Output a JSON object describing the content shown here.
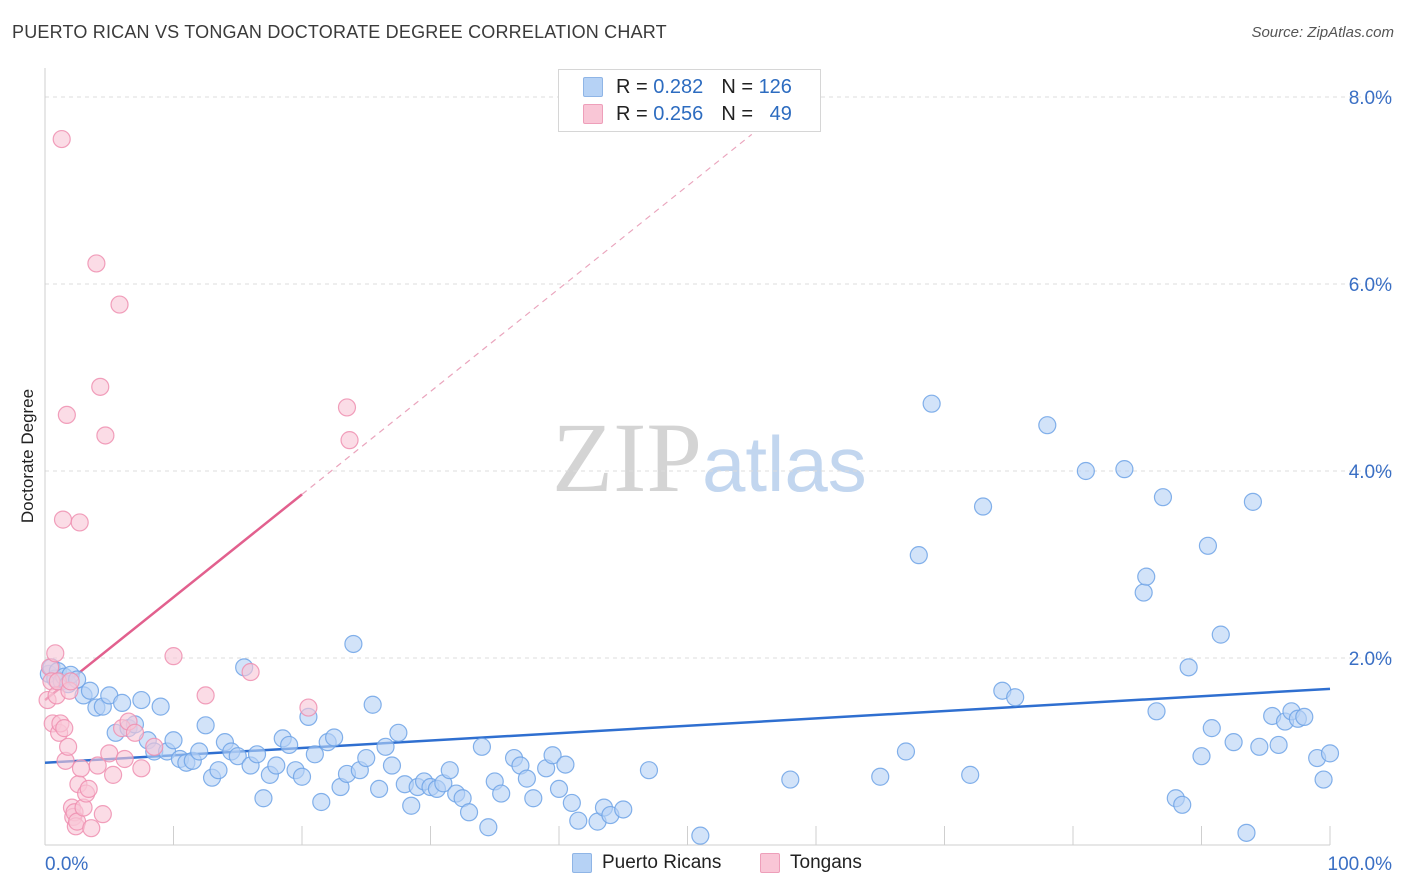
{
  "title": "PUERTO RICAN VS TONGAN DOCTORATE DEGREE CORRELATION CHART",
  "source": "Source: ZipAtlas.com",
  "watermark": {
    "zip": "ZIP",
    "atlas": "atlas"
  },
  "legend": {
    "rows": [
      {
        "r_label": "R =",
        "r_value": "0.282",
        "n_label": "N =",
        "n_value": "126",
        "color": "#b6d2f5"
      },
      {
        "r_label": "R =",
        "r_value": "0.256",
        "n_label": "N =",
        "n_value": "49",
        "color": "#f9c6d6"
      }
    ]
  },
  "bottom_legend": {
    "puerto_ricans": {
      "label": "Puerto Ricans",
      "color": "#b6d2f5"
    },
    "tongans": {
      "label": "Tongans",
      "color": "#f9c6d6"
    }
  },
  "chart_data": {
    "type": "scatter",
    "title": "PUERTO RICAN VS TONGAN DOCTORATE DEGREE CORRELATION CHART",
    "xlabel": "",
    "ylabel": "Doctorate Degree",
    "xlim": [
      0,
      100
    ],
    "ylim": [
      0,
      8.0
    ],
    "x_tick_labels": [
      "0.0%",
      "100.0%"
    ],
    "y_ticks": [
      2.0,
      4.0,
      6.0,
      8.0
    ],
    "y_tick_labels": [
      "2.0%",
      "4.0%",
      "6.0%",
      "8.0%"
    ],
    "grid": true,
    "series": [
      {
        "name": "Puerto Ricans",
        "color": "#6fa3e6",
        "fill": "#b6d2f5",
        "trend": {
          "x0": 0,
          "y0": 0.88,
          "x1": 100,
          "y1": 1.67,
          "color": "#2f6fd0"
        },
        "points": [
          [
            0.3,
            1.83
          ],
          [
            0.5,
            1.9
          ],
          [
            0.8,
            1.78
          ],
          [
            1.0,
            1.86
          ],
          [
            1.3,
            1.75
          ],
          [
            1.5,
            1.8
          ],
          [
            1.8,
            1.72
          ],
          [
            2.0,
            1.82
          ],
          [
            2.5,
            1.77
          ],
          [
            3.0,
            1.6
          ],
          [
            3.5,
            1.65
          ],
          [
            4.0,
            1.47
          ],
          [
            4.5,
            1.48
          ],
          [
            5.0,
            1.6
          ],
          [
            5.5,
            1.2
          ],
          [
            6.0,
            1.52
          ],
          [
            6.5,
            1.25
          ],
          [
            7.0,
            1.29
          ],
          [
            7.5,
            1.55
          ],
          [
            8.0,
            1.12
          ],
          [
            8.5,
            1.0
          ],
          [
            9.0,
            1.48
          ],
          [
            9.5,
            1.0
          ],
          [
            10.0,
            1.12
          ],
          [
            10.5,
            0.92
          ],
          [
            11.0,
            0.88
          ],
          [
            11.5,
            0.9
          ],
          [
            12.0,
            1.0
          ],
          [
            12.5,
            1.28
          ],
          [
            13.0,
            0.72
          ],
          [
            13.5,
            0.8
          ],
          [
            14.0,
            1.1
          ],
          [
            14.5,
            1.0
          ],
          [
            15.0,
            0.95
          ],
          [
            15.5,
            1.9
          ],
          [
            16.0,
            0.85
          ],
          [
            16.5,
            0.97
          ],
          [
            17.0,
            0.5
          ],
          [
            17.5,
            0.75
          ],
          [
            18.0,
            0.85
          ],
          [
            18.5,
            1.14
          ],
          [
            19.0,
            1.07
          ],
          [
            19.5,
            0.8
          ],
          [
            20.0,
            0.73
          ],
          [
            20.5,
            1.37
          ],
          [
            21.0,
            0.97
          ],
          [
            21.5,
            0.46
          ],
          [
            22.0,
            1.1
          ],
          [
            22.5,
            1.15
          ],
          [
            23.0,
            0.62
          ],
          [
            23.5,
            0.76
          ],
          [
            24.0,
            2.15
          ],
          [
            24.5,
            0.8
          ],
          [
            25.0,
            0.93
          ],
          [
            25.5,
            1.5
          ],
          [
            26.0,
            0.6
          ],
          [
            26.5,
            1.05
          ],
          [
            27.0,
            0.85
          ],
          [
            27.5,
            1.2
          ],
          [
            28.0,
            0.65
          ],
          [
            28.5,
            0.42
          ],
          [
            29.0,
            0.62
          ],
          [
            29.5,
            0.68
          ],
          [
            30.0,
            0.62
          ],
          [
            30.5,
            0.6
          ],
          [
            31.0,
            0.66
          ],
          [
            31.5,
            0.8
          ],
          [
            32.0,
            0.55
          ],
          [
            32.5,
            0.5
          ],
          [
            33.0,
            0.35
          ],
          [
            34.0,
            1.05
          ],
          [
            34.5,
            0.19
          ],
          [
            35.0,
            0.68
          ],
          [
            35.5,
            0.55
          ],
          [
            36.5,
            0.93
          ],
          [
            37.0,
            0.85
          ],
          [
            37.5,
            0.71
          ],
          [
            38.0,
            0.5
          ],
          [
            39.0,
            0.82
          ],
          [
            39.5,
            0.96
          ],
          [
            40.0,
            0.6
          ],
          [
            40.5,
            0.86
          ],
          [
            41.0,
            0.45
          ],
          [
            41.5,
            0.26
          ],
          [
            43.0,
            0.25
          ],
          [
            43.5,
            0.4
          ],
          [
            44.0,
            0.32
          ],
          [
            45.0,
            0.38
          ],
          [
            47.0,
            0.8
          ],
          [
            51.0,
            0.1
          ],
          [
            58.0,
            0.7
          ],
          [
            65.0,
            0.73
          ],
          [
            67.0,
            1.0
          ],
          [
            68.0,
            3.1
          ],
          [
            69.0,
            4.72
          ],
          [
            72.0,
            0.75
          ],
          [
            73.0,
            3.62
          ],
          [
            74.5,
            1.65
          ],
          [
            75.5,
            1.58
          ],
          [
            78.0,
            4.49
          ],
          [
            81.0,
            4.0
          ],
          [
            84.0,
            4.02
          ],
          [
            85.5,
            2.7
          ],
          [
            85.7,
            2.87
          ],
          [
            86.5,
            1.43
          ],
          [
            87.0,
            3.72
          ],
          [
            88.0,
            0.5
          ],
          [
            88.5,
            0.43
          ],
          [
            89.0,
            1.9
          ],
          [
            90.0,
            0.95
          ],
          [
            90.5,
            3.2
          ],
          [
            90.8,
            1.25
          ],
          [
            91.5,
            2.25
          ],
          [
            92.5,
            1.1
          ],
          [
            93.5,
            0.13
          ],
          [
            94.0,
            3.67
          ],
          [
            94.5,
            1.05
          ],
          [
            95.5,
            1.38
          ],
          [
            96.0,
            1.07
          ],
          [
            96.5,
            1.32
          ],
          [
            97.0,
            1.43
          ],
          [
            97.5,
            1.35
          ],
          [
            98.0,
            1.37
          ],
          [
            99.0,
            0.93
          ],
          [
            99.5,
            0.7
          ],
          [
            100.0,
            0.98
          ]
        ]
      },
      {
        "name": "Tongans",
        "color": "#ee8fb0",
        "fill": "#f9c6d6",
        "trend": {
          "x0": 0,
          "y0": 1.55,
          "x1": 20,
          "y1": 3.75,
          "color": "#e2608e"
        },
        "trend_extension": {
          "x0": 20,
          "y0": 3.75,
          "x1": 55,
          "y1": 7.6
        },
        "points": [
          [
            0.2,
            1.55
          ],
          [
            0.4,
            1.9
          ],
          [
            0.5,
            1.75
          ],
          [
            0.6,
            1.3
          ],
          [
            0.8,
            2.05
          ],
          [
            0.9,
            1.6
          ],
          [
            1.0,
            1.75
          ],
          [
            1.1,
            1.2
          ],
          [
            1.2,
            1.3
          ],
          [
            1.3,
            7.55
          ],
          [
            1.4,
            3.48
          ],
          [
            1.5,
            1.25
          ],
          [
            1.6,
            0.9
          ],
          [
            1.7,
            4.6
          ],
          [
            1.8,
            1.05
          ],
          [
            1.9,
            1.65
          ],
          [
            2.0,
            1.75
          ],
          [
            2.1,
            0.4
          ],
          [
            2.2,
            0.3
          ],
          [
            2.3,
            0.35
          ],
          [
            2.4,
            0.2
          ],
          [
            2.5,
            0.25
          ],
          [
            2.6,
            0.65
          ],
          [
            2.7,
            3.45
          ],
          [
            2.8,
            0.82
          ],
          [
            3.0,
            0.4
          ],
          [
            3.2,
            0.55
          ],
          [
            3.4,
            0.6
          ],
          [
            3.6,
            0.18
          ],
          [
            4.0,
            6.22
          ],
          [
            4.1,
            0.85
          ],
          [
            4.3,
            4.9
          ],
          [
            4.5,
            0.33
          ],
          [
            4.7,
            4.38
          ],
          [
            5.0,
            0.98
          ],
          [
            5.3,
            0.75
          ],
          [
            5.8,
            5.78
          ],
          [
            6.0,
            1.25
          ],
          [
            6.2,
            0.92
          ],
          [
            6.5,
            1.32
          ],
          [
            7.0,
            1.2
          ],
          [
            7.5,
            0.82
          ],
          [
            8.5,
            1.05
          ],
          [
            10.0,
            2.02
          ],
          [
            12.5,
            1.6
          ],
          [
            16.0,
            1.85
          ],
          [
            20.5,
            1.47
          ],
          [
            23.5,
            4.68
          ],
          [
            23.7,
            4.33
          ]
        ]
      }
    ]
  }
}
